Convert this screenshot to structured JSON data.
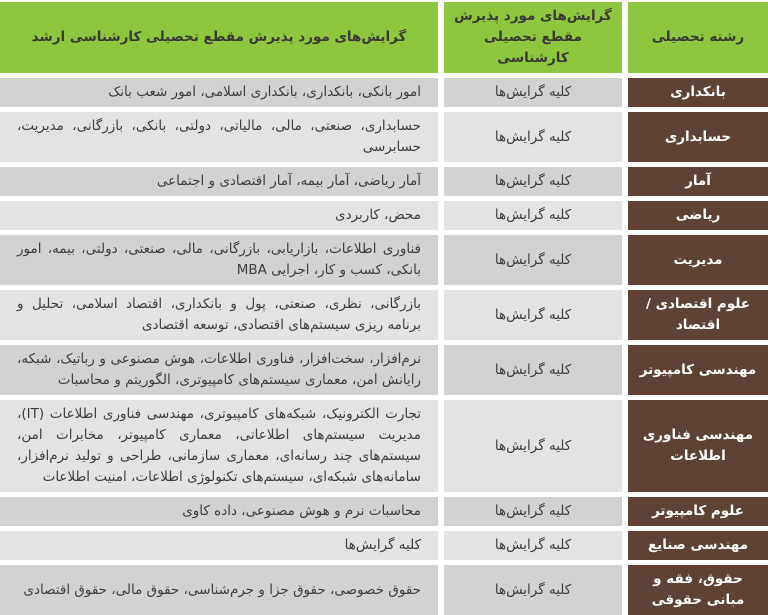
{
  "colors": {
    "header_green": "#8dc63f",
    "field_column_brown": "#5f4136",
    "row_shade_dark": "#d2d2d2",
    "row_shade_light": "#e3e3e3",
    "body_text": "#3d3d3d",
    "field_text": "#ffffff",
    "separator_white": "#ffffff"
  },
  "table": {
    "header": {
      "field": "رشته تحصیلی",
      "bachelor": "گرایش‌های مورد پذیرش مقطع تحصیلی کارشناسی",
      "master": "گرایش‌های مورد پذیرش مقطع تحصیلی کارشناسی ارشد"
    },
    "rows": [
      {
        "field": "بانکداری",
        "bachelor": "کلیه گرایش‌ها",
        "master": "امور بانکی، بانکداری، بانکداری اسلامی، امور شعب بانک"
      },
      {
        "field": "حسابداری",
        "bachelor": "کلیه گرایش‌ها",
        "master": "حسابداری، صنعتی، مالی، مالیاتی، دولتی، بانکی، بازرگانی، مدیریت، حسابرسی"
      },
      {
        "field": "آمار",
        "bachelor": "کلیه گرایش‌ها",
        "master": "آمار ریاضی، آمار بیمه، آمار اقتصادی و اجتماعی"
      },
      {
        "field": "ریاضی",
        "bachelor": "کلیه گرایش‌ها",
        "master": "محض، کاربردی"
      },
      {
        "field": "مدیریت",
        "bachelor": "کلیه گرایش‌ها",
        "master": "فناوری اطلاعات، بازاریابی، بازرگانی، مالی، صنعتی، دولتی، بیمه، امور بانکی، کسب و کار، اجرایی MBA"
      },
      {
        "field": "علوم اقتصادی / اقتصاد",
        "bachelor": "کلیه گرایش‌ها",
        "master": "بازرگانی، نظری، صنعتی، پول و بانکداری، اقتصاد اسلامی، تحلیل و برنامه ریزی سیستم‌های اقتصادی، توسعه اقتصادی"
      },
      {
        "field": "مهندسی کامپیوتر",
        "bachelor": "کلیه گرایش‌ها",
        "master": "نرم‌افزار، سخت‌افزار، فناوری اطلاعات، هوش مصنوعی و رباتیک، شبکه، رایانش امن، معماری سیستم‌های کامپیوتری، الگوریتم و محاسبات"
      },
      {
        "field": "مهندسی فناوری اطلاعات",
        "bachelor": "کلیه گرایش‌ها",
        "master": "تجارت الکترونیک، شبکه‌های کامپیوتری، مهندسی فناوری اطلاعات (IT)، مدیریت سیستم‌های اطلاعاتی، معماری کامپیوتر، مخابرات امن، سیستم‌های چند رسانه‌ای، معماری سازمانی، طراحی و تولید نرم‌افزار، سامانه‌های شبکه‌ای، سیستم‌های تکنولوژی اطلاعات، امنیت اطلاعات"
      },
      {
        "field": "علوم کامپیوتر",
        "bachelor": "کلیه گرایش‌ها",
        "master": "محاسبات نرم و هوش مصنوعی، داده کاوی"
      },
      {
        "field": "مهندسی صنایع",
        "bachelor": "کلیه گرایش‌ها",
        "master": "کلیه گرایش‌ها"
      },
      {
        "field": "حقوق، فقه و مبانی حقوقی",
        "bachelor": "کلیه گرایش‌ها",
        "master": "حقوق خصوصی، حقوق جزا و جرم‌شناسی، حقوق مالی، حقوق اقتصادی"
      }
    ]
  }
}
